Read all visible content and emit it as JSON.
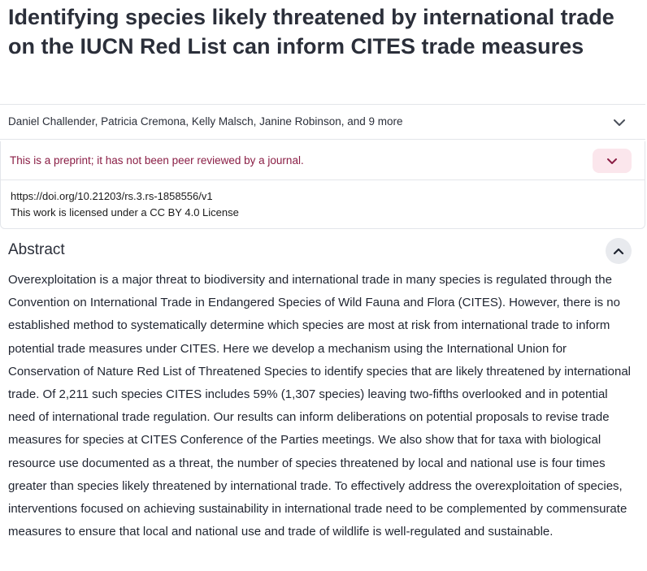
{
  "article": {
    "title": "Identifying species likely threatened by international trade on the IUCN Red List can inform CITES trade measures",
    "authors": "Daniel Challender, Patricia Cremona, Kelly Malsch, Janine Robinson, and 9 more",
    "preprint_notice": "This is a preprint; it has not been peer reviewed by a journal.",
    "doi": "https://doi.org/10.21203/rs.3.rs-1858556/v1",
    "license": "This work is licensed under a CC BY 4.0 License"
  },
  "abstract": {
    "heading": "Abstract",
    "text": "Overexploitation is a major threat to biodiversity and international trade in many species is regulated through the Convention on International Trade in Endangered Species of Wild Fauna and Flora (CITES). However, there is no established method to systematically determine which species are most at risk from international trade to inform potential trade measures under CITES. Here we develop a mechanism using the International Union for Conservation of Nature Red List of Threatened Species to identify species that are likely threatened by international trade. Of 2,211 such species CITES includes 59% (1,307 species) leaving two-fifths overlooked and in potential need of international trade regulation. Our results can inform deliberations on potential proposals to revise trade measures for species at CITES Conference of the Parties meetings. We also show that for taxa with biological resource use documented as a threat, the number of species threatened by local and national use is four times greater than species likely threatened by international trade. To effectively address the overexploitation of species, interventions focused on achieving sustainability in international trade need to be complemented by commensurate measures to ensure that local and national use and trade of wildlife is well-regulated and sustainable."
  },
  "icons": {
    "authors_toggle": "chevron-down-icon",
    "preprint_toggle": "chevron-down-icon",
    "abstract_toggle": "chevron-up-icon"
  },
  "colors": {
    "title": "#2b2f3a",
    "preprint_text": "#8a1e45",
    "preprint_button_bg": "#fbe6ec",
    "abstract_button_bg": "#e8eaee",
    "border": "#e3e5ea"
  }
}
